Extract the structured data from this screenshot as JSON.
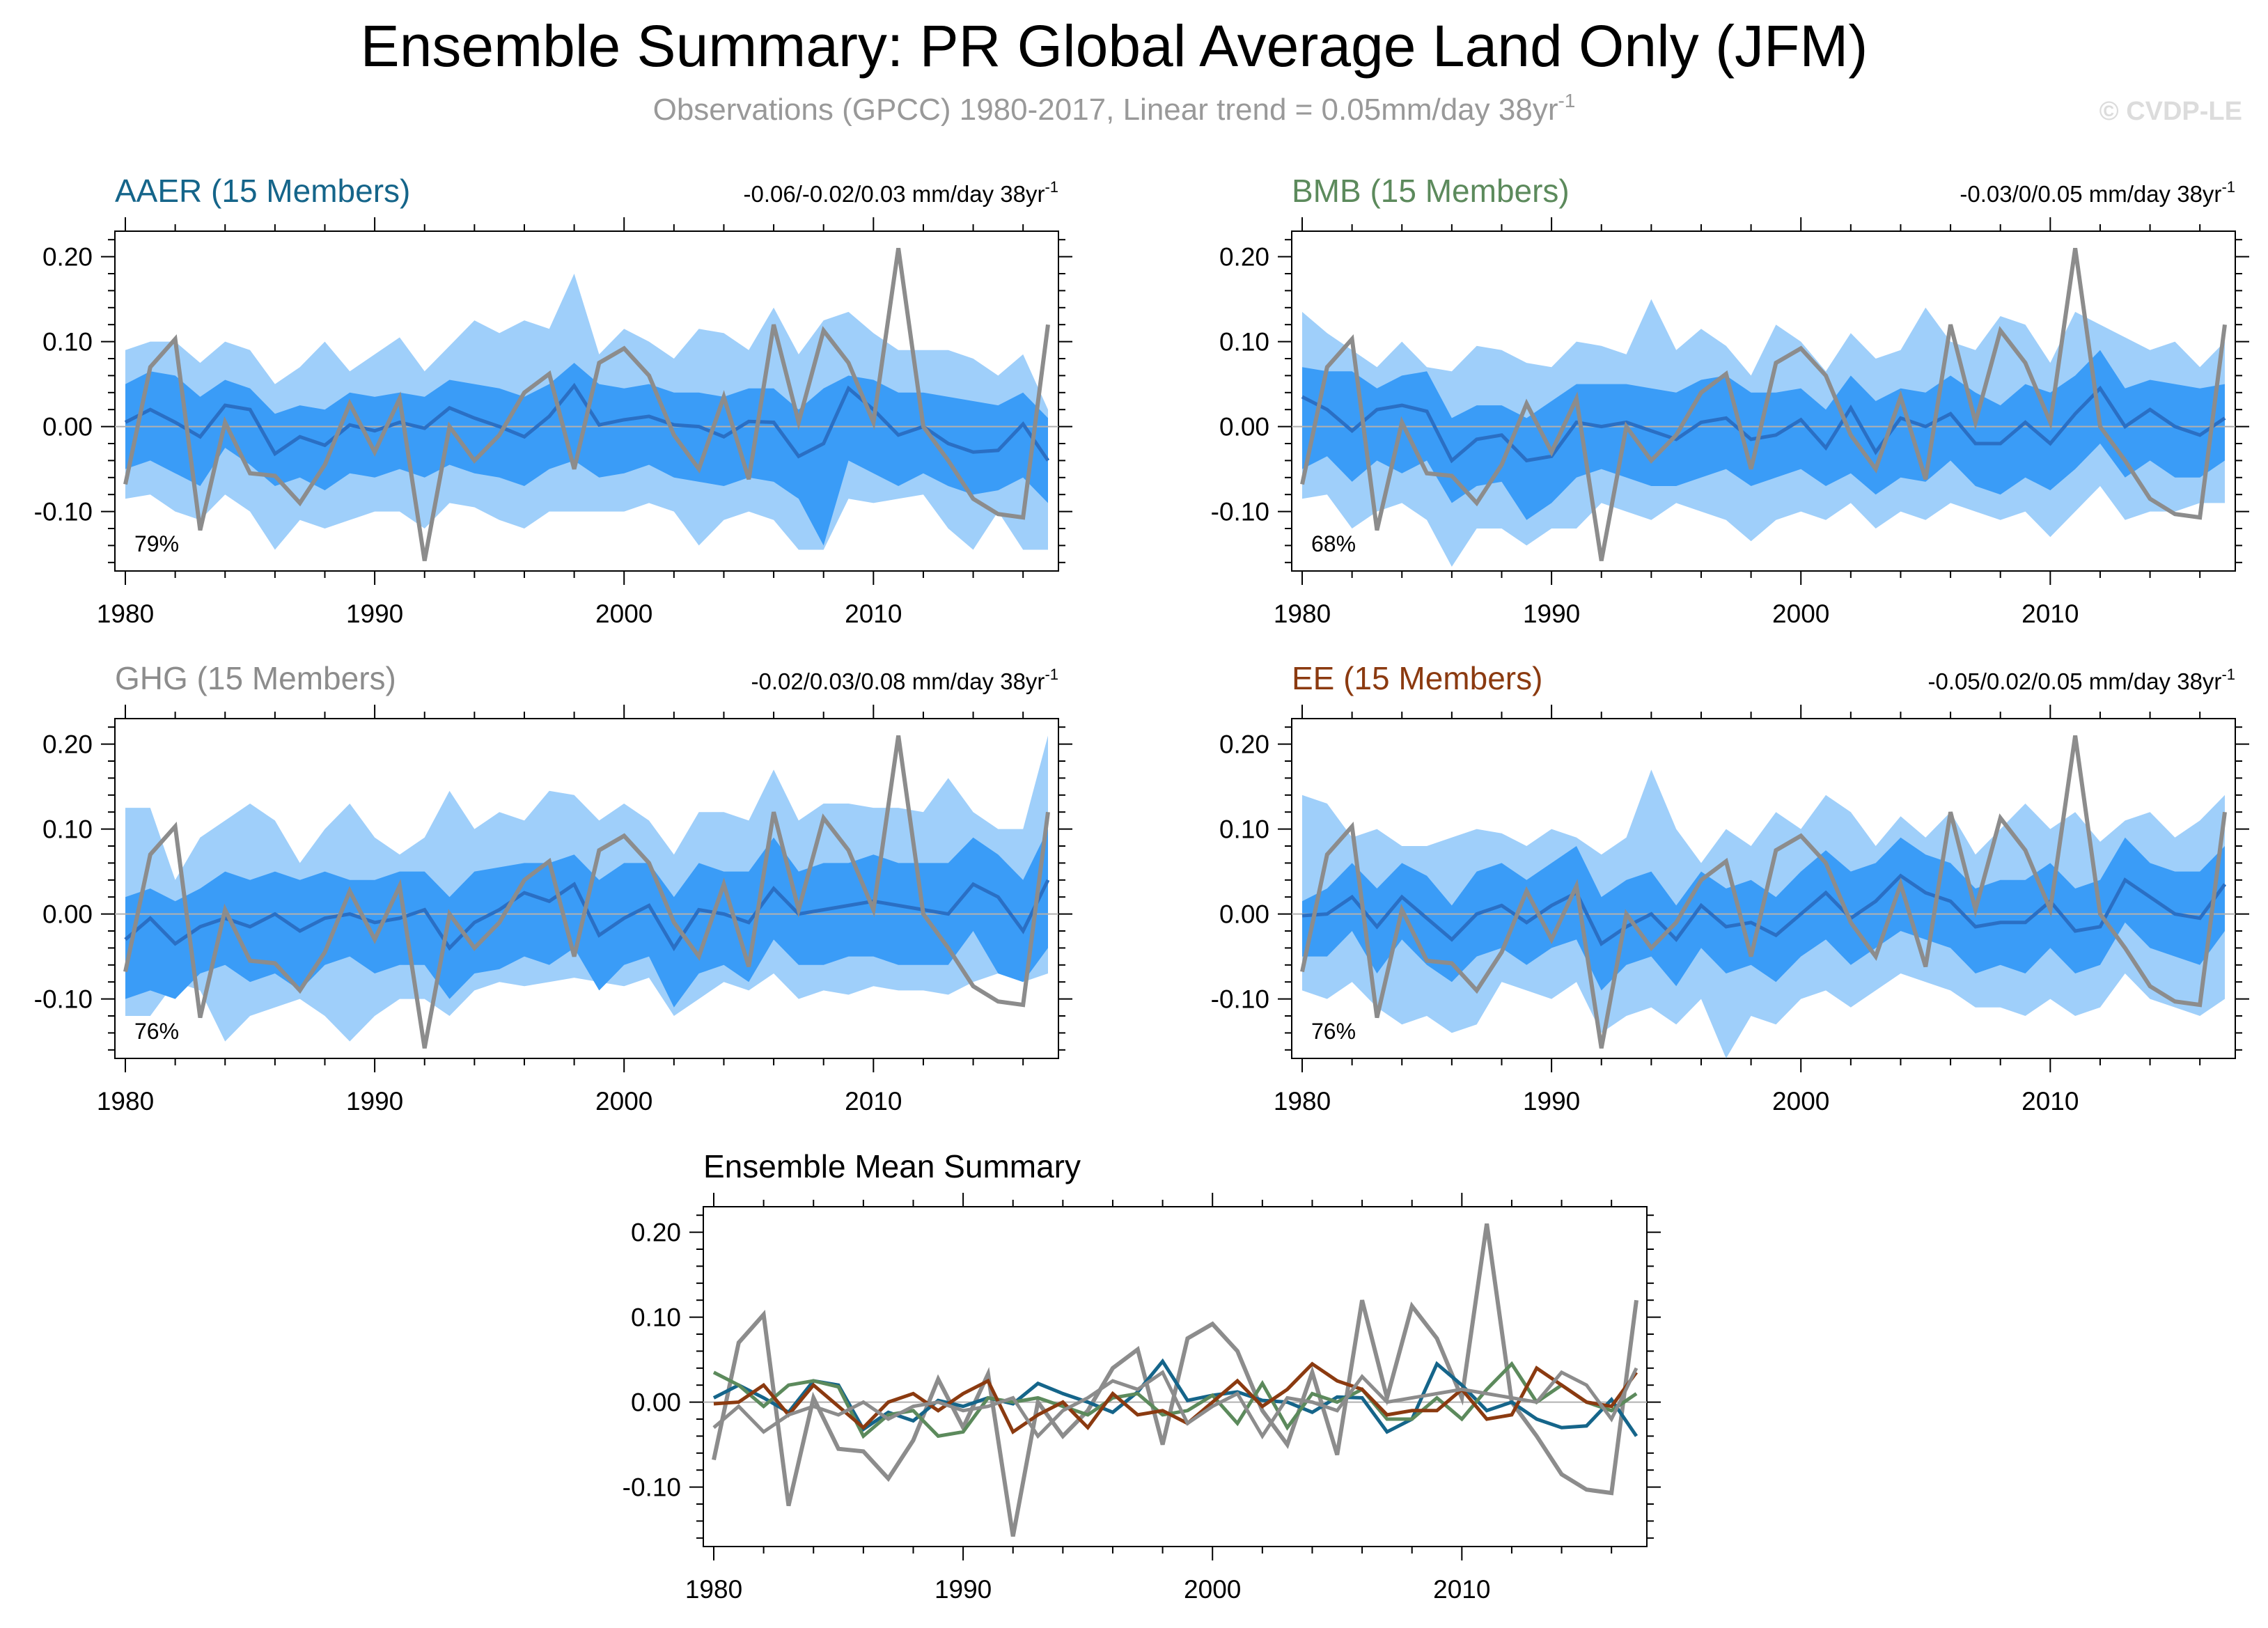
{
  "header": {
    "title": "Ensemble Summary: PR Global Average Land Only (JFM)",
    "subtitle": "Observations (GPCC) 1980-2017, Linear trend = 0.05mm/day 38yr",
    "subtitle_sup": "-1",
    "watermark": "© CVDP-LE"
  },
  "colors": {
    "outer_band": "#9fcffa",
    "inner_band": "#3a9cf7",
    "mean_line": "#2a6fc4",
    "obs_line": "#8c8c8c",
    "zero_line": "#b0b0b0",
    "AAER": "#15658a",
    "BMB": "#5c8a5c",
    "GHG": "#8c8c8c",
    "EE": "#8b3a10"
  },
  "years": [
    1980,
    1981,
    1982,
    1983,
    1984,
    1985,
    1986,
    1987,
    1988,
    1989,
    1990,
    1991,
    1992,
    1993,
    1994,
    1995,
    1996,
    1997,
    1998,
    1999,
    2000,
    2001,
    2002,
    2003,
    2004,
    2005,
    2006,
    2007,
    2008,
    2009,
    2010,
    2011,
    2012,
    2013,
    2014,
    2015,
    2016,
    2017
  ],
  "observations": [
    -0.068,
    0.07,
    0.103,
    -0.122,
    0.005,
    -0.055,
    -0.058,
    -0.09,
    -0.045,
    0.027,
    -0.03,
    0.033,
    -0.158,
    0.0,
    -0.04,
    -0.01,
    0.04,
    0.062,
    -0.05,
    0.075,
    0.092,
    0.06,
    -0.01,
    -0.05,
    0.035,
    -0.062,
    0.12,
    0.005,
    0.113,
    0.075,
    0.005,
    0.21,
    0.0,
    -0.04,
    -0.085,
    -0.103,
    -0.107,
    0.12
  ],
  "chart_data": [
    {
      "type": "area",
      "name": "AAER",
      "title": "AAER (15 Members)",
      "trend": "-0.06/-0.02/0.03 mm/day 38yr",
      "trend_sup": "-1",
      "percent": "79%",
      "xlim": [
        1980,
        2017
      ],
      "ylim": [
        -0.17,
        0.23
      ],
      "xticks": [
        "1980",
        "1990",
        "2000",
        "2010"
      ],
      "yticks": [
        "0.20",
        "0.10",
        "0.00",
        "-0.10"
      ],
      "mean": [
        0.005,
        0.02,
        0.005,
        -0.012,
        0.025,
        0.02,
        -0.032,
        -0.012,
        -0.022,
        0.002,
        -0.005,
        0.005,
        -0.002,
        0.022,
        0.01,
        0.0,
        -0.012,
        0.012,
        0.048,
        0.002,
        0.008,
        0.012,
        0.002,
        0.0,
        -0.012,
        0.006,
        0.005,
        -0.035,
        -0.02,
        0.045,
        0.02,
        -0.01,
        0.0,
        -0.02,
        -0.03,
        -0.028,
        0.003,
        -0.04
      ],
      "inner_lo": [
        -0.05,
        -0.04,
        -0.055,
        -0.07,
        -0.025,
        -0.045,
        -0.07,
        -0.06,
        -0.075,
        -0.055,
        -0.06,
        -0.05,
        -0.06,
        -0.045,
        -0.055,
        -0.06,
        -0.07,
        -0.05,
        -0.04,
        -0.06,
        -0.055,
        -0.045,
        -0.06,
        -0.065,
        -0.07,
        -0.06,
        -0.065,
        -0.085,
        -0.14,
        -0.04,
        -0.055,
        -0.07,
        -0.055,
        -0.07,
        -0.08,
        -0.075,
        -0.06,
        -0.09
      ],
      "inner_hi": [
        0.05,
        0.065,
        0.06,
        0.035,
        0.055,
        0.045,
        0.015,
        0.025,
        0.02,
        0.04,
        0.035,
        0.04,
        0.035,
        0.055,
        0.05,
        0.045,
        0.035,
        0.05,
        0.075,
        0.05,
        0.045,
        0.05,
        0.04,
        0.04,
        0.035,
        0.045,
        0.045,
        0.02,
        0.045,
        0.06,
        0.055,
        0.04,
        0.04,
        0.035,
        0.03,
        0.025,
        0.04,
        0.01
      ],
      "outer_lo": [
        -0.085,
        -0.08,
        -0.1,
        -0.11,
        -0.08,
        -0.1,
        -0.145,
        -0.11,
        -0.12,
        -0.11,
        -0.1,
        -0.1,
        -0.12,
        -0.09,
        -0.095,
        -0.11,
        -0.12,
        -0.1,
        -0.1,
        -0.1,
        -0.1,
        -0.09,
        -0.1,
        -0.14,
        -0.11,
        -0.1,
        -0.11,
        -0.145,
        -0.145,
        -0.085,
        -0.09,
        -0.085,
        -0.08,
        -0.12,
        -0.145,
        -0.1,
        -0.145,
        -0.145
      ],
      "outer_hi": [
        0.09,
        0.1,
        0.1,
        0.075,
        0.1,
        0.09,
        0.05,
        0.07,
        0.1,
        0.065,
        0.085,
        0.105,
        0.065,
        0.095,
        0.125,
        0.11,
        0.125,
        0.115,
        0.18,
        0.085,
        0.115,
        0.1,
        0.08,
        0.115,
        0.11,
        0.09,
        0.14,
        0.085,
        0.125,
        0.135,
        0.11,
        0.09,
        0.09,
        0.09,
        0.08,
        0.06,
        0.085,
        0.02
      ]
    },
    {
      "type": "area",
      "name": "BMB",
      "title": "BMB (15 Members)",
      "trend": "-0.03/0/0.05 mm/day 38yr",
      "trend_sup": "-1",
      "percent": "68%",
      "xlim": [
        1980,
        2017
      ],
      "ylim": [
        -0.17,
        0.23
      ],
      "xticks": [
        "1980",
        "1990",
        "2000",
        "2010"
      ],
      "yticks": [
        "0.20",
        "0.10",
        "0.00",
        "-0.10"
      ],
      "mean": [
        0.035,
        0.02,
        -0.005,
        0.02,
        0.025,
        0.018,
        -0.04,
        -0.015,
        -0.01,
        -0.04,
        -0.035,
        0.005,
        0.0,
        0.005,
        -0.005,
        -0.015,
        0.005,
        0.01,
        -0.015,
        -0.01,
        0.008,
        -0.025,
        0.022,
        -0.03,
        0.01,
        0.0,
        0.015,
        -0.02,
        -0.02,
        0.005,
        -0.02,
        0.015,
        0.045,
        0.0,
        0.02,
        0.0,
        -0.01,
        0.01
      ],
      "inner_lo": [
        -0.05,
        -0.035,
        -0.065,
        -0.04,
        -0.055,
        -0.04,
        -0.09,
        -0.07,
        -0.065,
        -0.11,
        -0.09,
        -0.06,
        -0.05,
        -0.06,
        -0.07,
        -0.07,
        -0.06,
        -0.05,
        -0.07,
        -0.06,
        -0.05,
        -0.07,
        -0.055,
        -0.08,
        -0.06,
        -0.065,
        -0.04,
        -0.07,
        -0.08,
        -0.06,
        -0.075,
        -0.05,
        -0.02,
        -0.06,
        -0.04,
        -0.06,
        -0.06,
        -0.04
      ],
      "inner_hi": [
        0.07,
        0.065,
        0.065,
        0.045,
        0.06,
        0.065,
        0.01,
        0.025,
        0.025,
        0.01,
        0.03,
        0.05,
        0.05,
        0.05,
        0.045,
        0.04,
        0.055,
        0.06,
        0.04,
        0.04,
        0.045,
        0.02,
        0.06,
        0.03,
        0.045,
        0.04,
        0.06,
        0.04,
        0.025,
        0.05,
        0.04,
        0.06,
        0.09,
        0.045,
        0.055,
        0.05,
        0.045,
        0.05
      ],
      "outer_lo": [
        -0.085,
        -0.08,
        -0.12,
        -0.1,
        -0.09,
        -0.11,
        -0.165,
        -0.12,
        -0.12,
        -0.14,
        -0.12,
        -0.12,
        -0.09,
        -0.1,
        -0.11,
        -0.09,
        -0.1,
        -0.11,
        -0.135,
        -0.11,
        -0.1,
        -0.11,
        -0.09,
        -0.12,
        -0.1,
        -0.11,
        -0.09,
        -0.1,
        -0.11,
        -0.1,
        -0.13,
        -0.1,
        -0.07,
        -0.11,
        -0.1,
        -0.1,
        -0.09,
        -0.09
      ],
      "outer_hi": [
        0.135,
        0.11,
        0.09,
        0.07,
        0.1,
        0.07,
        0.065,
        0.095,
        0.09,
        0.075,
        0.07,
        0.1,
        0.095,
        0.085,
        0.15,
        0.09,
        0.115,
        0.095,
        0.06,
        0.12,
        0.1,
        0.065,
        0.11,
        0.08,
        0.09,
        0.14,
        0.1,
        0.09,
        0.13,
        0.12,
        0.075,
        0.135,
        0.12,
        0.105,
        0.09,
        0.1,
        0.07,
        0.1
      ]
    },
    {
      "type": "area",
      "name": "GHG",
      "title": "GHG (15 Members)",
      "trend": "-0.02/0.03/0.08 mm/day 38yr",
      "trend_sup": "-1",
      "percent": "76%",
      "xlim": [
        1980,
        2017
      ],
      "ylim": [
        -0.17,
        0.23
      ],
      "xticks": [
        "1980",
        "1990",
        "2000",
        "2010"
      ],
      "yticks": [
        "0.20",
        "0.10",
        "0.00",
        "-0.10"
      ],
      "mean": [
        -0.03,
        -0.005,
        -0.035,
        -0.015,
        -0.005,
        -0.015,
        0.0,
        -0.02,
        -0.005,
        0.0,
        -0.01,
        -0.005,
        0.005,
        -0.04,
        -0.01,
        0.005,
        0.025,
        0.015,
        0.035,
        -0.025,
        -0.005,
        0.01,
        -0.04,
        0.005,
        0.0,
        -0.01,
        0.03,
        0.0,
        0.005,
        0.01,
        0.015,
        0.01,
        0.005,
        0.0,
        0.035,
        0.02,
        -0.02,
        0.04
      ],
      "inner_lo": [
        -0.1,
        -0.09,
        -0.1,
        -0.07,
        -0.06,
        -0.08,
        -0.07,
        -0.09,
        -0.06,
        -0.05,
        -0.07,
        -0.06,
        -0.06,
        -0.1,
        -0.07,
        -0.065,
        -0.05,
        -0.06,
        -0.04,
        -0.09,
        -0.06,
        -0.05,
        -0.11,
        -0.07,
        -0.06,
        -0.08,
        -0.03,
        -0.06,
        -0.06,
        -0.05,
        -0.05,
        -0.06,
        -0.06,
        -0.06,
        -0.02,
        -0.07,
        -0.08,
        -0.04
      ],
      "inner_hi": [
        0.02,
        0.03,
        0.015,
        0.03,
        0.05,
        0.04,
        0.05,
        0.04,
        0.05,
        0.04,
        0.04,
        0.05,
        0.05,
        0.02,
        0.05,
        0.055,
        0.06,
        0.06,
        0.07,
        0.04,
        0.06,
        0.06,
        0.02,
        0.06,
        0.05,
        0.05,
        0.09,
        0.05,
        0.06,
        0.06,
        0.07,
        0.06,
        0.06,
        0.06,
        0.09,
        0.07,
        0.04,
        0.1
      ],
      "outer_lo": [
        -0.12,
        -0.12,
        -0.08,
        -0.09,
        -0.15,
        -0.12,
        -0.11,
        -0.1,
        -0.12,
        -0.15,
        -0.12,
        -0.1,
        -0.1,
        -0.12,
        -0.09,
        -0.08,
        -0.085,
        -0.08,
        -0.075,
        -0.08,
        -0.085,
        -0.075,
        -0.12,
        -0.1,
        -0.08,
        -0.09,
        -0.07,
        -0.1,
        -0.09,
        -0.095,
        -0.085,
        -0.09,
        -0.09,
        -0.095,
        -0.08,
        -0.07,
        -0.08,
        -0.07
      ],
      "outer_hi": [
        0.125,
        0.125,
        0.04,
        0.09,
        0.11,
        0.13,
        0.11,
        0.06,
        0.1,
        0.13,
        0.09,
        0.07,
        0.09,
        0.145,
        0.1,
        0.12,
        0.11,
        0.145,
        0.14,
        0.11,
        0.13,
        0.11,
        0.07,
        0.12,
        0.12,
        0.11,
        0.17,
        0.11,
        0.13,
        0.13,
        0.125,
        0.125,
        0.12,
        0.16,
        0.12,
        0.1,
        0.1,
        0.21
      ]
    },
    {
      "type": "area",
      "name": "EE",
      "title": "EE (15 Members)",
      "trend": "-0.05/0.02/0.05 mm/day 38yr",
      "trend_sup": "-1",
      "percent": "76%",
      "xlim": [
        1980,
        2017
      ],
      "ylim": [
        -0.17,
        0.23
      ],
      "xticks": [
        "1980",
        "1990",
        "2000",
        "2010"
      ],
      "yticks": [
        "0.20",
        "0.10",
        "0.00",
        "-0.10"
      ],
      "mean": [
        -0.002,
        0.0,
        0.02,
        -0.015,
        0.02,
        -0.005,
        -0.03,
        0.0,
        0.01,
        -0.01,
        0.01,
        0.025,
        -0.035,
        -0.015,
        0.0,
        -0.03,
        0.01,
        -0.015,
        -0.01,
        -0.025,
        0.0,
        0.025,
        -0.005,
        0.015,
        0.045,
        0.025,
        0.015,
        -0.015,
        -0.01,
        -0.01,
        0.015,
        -0.02,
        -0.015,
        0.04,
        0.02,
        0.0,
        -0.005,
        0.035
      ],
      "inner_lo": [
        -0.05,
        -0.05,
        -0.02,
        -0.07,
        -0.03,
        -0.06,
        -0.08,
        -0.05,
        -0.04,
        -0.06,
        -0.04,
        -0.03,
        -0.09,
        -0.06,
        -0.05,
        -0.085,
        -0.04,
        -0.07,
        -0.06,
        -0.08,
        -0.05,
        -0.03,
        -0.06,
        -0.04,
        -0.02,
        -0.03,
        -0.04,
        -0.07,
        -0.06,
        -0.07,
        -0.04,
        -0.07,
        -0.06,
        -0.01,
        -0.04,
        -0.05,
        -0.06,
        -0.02
      ],
      "inner_hi": [
        0.015,
        0.03,
        0.06,
        0.03,
        0.06,
        0.045,
        0.01,
        0.05,
        0.06,
        0.04,
        0.06,
        0.08,
        0.02,
        0.04,
        0.05,
        0.01,
        0.05,
        0.03,
        0.04,
        0.02,
        0.05,
        0.075,
        0.05,
        0.06,
        0.09,
        0.07,
        0.06,
        0.03,
        0.04,
        0.04,
        0.06,
        0.03,
        0.04,
        0.09,
        0.06,
        0.05,
        0.05,
        0.08
      ],
      "outer_lo": [
        -0.09,
        -0.1,
        -0.08,
        -0.11,
        -0.13,
        -0.12,
        -0.14,
        -0.13,
        -0.08,
        -0.09,
        -0.1,
        -0.08,
        -0.14,
        -0.12,
        -0.11,
        -0.13,
        -0.1,
        -0.17,
        -0.12,
        -0.13,
        -0.1,
        -0.09,
        -0.11,
        -0.09,
        -0.07,
        -0.08,
        -0.09,
        -0.11,
        -0.11,
        -0.12,
        -0.1,
        -0.12,
        -0.11,
        -0.07,
        -0.1,
        -0.11,
        -0.12,
        -0.1
      ],
      "outer_hi": [
        0.14,
        0.13,
        0.09,
        0.1,
        0.08,
        0.08,
        0.09,
        0.1,
        0.095,
        0.08,
        0.1,
        0.09,
        0.07,
        0.09,
        0.17,
        0.1,
        0.06,
        0.1,
        0.08,
        0.12,
        0.1,
        0.14,
        0.12,
        0.08,
        0.115,
        0.09,
        0.12,
        0.07,
        0.1,
        0.13,
        0.1,
        0.12,
        0.085,
        0.11,
        0.12,
        0.09,
        0.11,
        0.14
      ]
    },
    {
      "type": "line",
      "name": "Ensemble Mean",
      "title": "Ensemble Mean Summary",
      "xlim": [
        1980,
        2017
      ],
      "ylim": [
        -0.17,
        0.23
      ],
      "xticks": [
        "1980",
        "1990",
        "2000",
        "2010"
      ],
      "yticks": [
        "0.20",
        "0.10",
        "0.00",
        "-0.10"
      ],
      "series": [
        {
          "name": "AAER",
          "color_key": "AAER",
          "source": "AAER"
        },
        {
          "name": "BMB",
          "color_key": "BMB",
          "source": "BMB"
        },
        {
          "name": "EE",
          "color_key": "EE",
          "source": "EE"
        },
        {
          "name": "GHG",
          "color_key": "GHG",
          "source": "GHG"
        }
      ]
    }
  ]
}
